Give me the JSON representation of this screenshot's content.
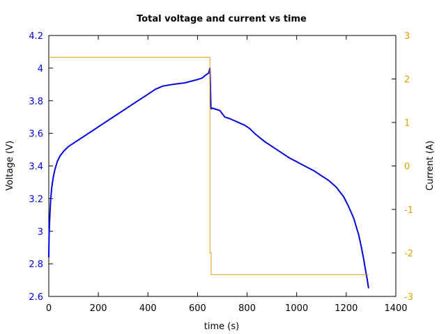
{
  "chart_data": {
    "type": "line",
    "title": "Total voltage and current vs time",
    "xlabel": "time (s)",
    "ylabel_left": "Voltage (V)",
    "ylabel_right": "Current (A)",
    "xlim": [
      0,
      1400
    ],
    "ylim_left": [
      2.6,
      4.2
    ],
    "ylim_right": [
      -3,
      3
    ],
    "x_ticks": [
      "0",
      "200",
      "400",
      "600",
      "800",
      "1000",
      "1200",
      "1400"
    ],
    "y_left_ticks": [
      "2.6",
      "2.8",
      "3",
      "3.2",
      "3.4",
      "3.6",
      "3.8",
      "4",
      "4.2"
    ],
    "y_right_ticks": [
      "-3",
      "-2",
      "-1",
      "0",
      "1",
      "2",
      "3"
    ],
    "grid": false,
    "colors": {
      "voltage": "#0000e0",
      "current": "#e0a000",
      "left_axis": "#0000e0",
      "right_axis": "#e0a000"
    },
    "series": [
      {
        "axis": "left",
        "x": [
          0,
          1,
          3,
          5,
          8,
          12,
          18,
          25,
          35,
          45,
          60,
          80,
          100,
          150,
          200,
          250,
          300,
          350,
          400,
          430,
          460,
          500,
          550,
          600,
          620,
          635,
          645,
          650,
          652,
          654,
          656,
          660,
          670,
          690,
          700,
          710,
          730,
          760,
          790,
          810,
          830,
          870,
          920,
          970,
          1020,
          1070,
          1100,
          1130,
          1160,
          1190,
          1210,
          1230,
          1250,
          1260,
          1270,
          1278,
          1285,
          1290
        ],
        "y": [
          2.84,
          2.97,
          3.05,
          3.12,
          3.2,
          3.27,
          3.33,
          3.38,
          3.43,
          3.46,
          3.49,
          3.52,
          3.54,
          3.59,
          3.64,
          3.69,
          3.74,
          3.79,
          3.84,
          3.87,
          3.89,
          3.9,
          3.91,
          3.93,
          3.94,
          3.96,
          3.97,
          4.0,
          3.9,
          3.76,
          3.75,
          3.755,
          3.75,
          3.74,
          3.72,
          3.7,
          3.69,
          3.67,
          3.65,
          3.63,
          3.6,
          3.55,
          3.5,
          3.45,
          3.41,
          3.37,
          3.34,
          3.31,
          3.27,
          3.21,
          3.15,
          3.08,
          2.98,
          2.91,
          2.83,
          2.76,
          2.7,
          2.65
        ]
      },
      {
        "axis": "right",
        "x": [
          0,
          650,
          650,
          655,
          655,
          1290
        ],
        "y": [
          2.5,
          2.5,
          -2.0,
          -2.0,
          -2.5,
          -2.5
        ]
      }
    ]
  }
}
